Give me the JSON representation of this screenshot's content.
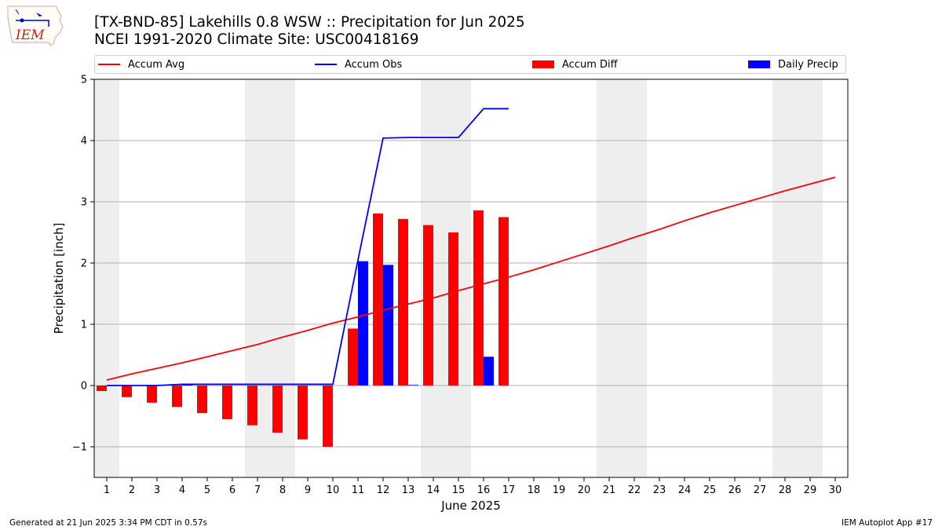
{
  "header": {
    "title": "[TX-BND-85] Lakehills 0.8 WSW :: Precipitation for Jun 2025",
    "subtitle": "NCEI 1991-2020 Climate Site: USC00418169",
    "logo_text": "IEM"
  },
  "legend": {
    "items": [
      {
        "label": "Accum Avg",
        "color": "#ff0000",
        "kind": "line"
      },
      {
        "label": "Accum Obs",
        "color": "#0000ff",
        "kind": "line"
      },
      {
        "label": "Accum Diff",
        "color": "#ff0000",
        "kind": "box"
      },
      {
        "label": "Daily Precip",
        "color": "#0000ff",
        "kind": "box"
      }
    ]
  },
  "footer": {
    "left": "Generated at 21 Jun 2025 3:34 PM CDT in 0.57s",
    "right": "IEM Autoplot App #17"
  },
  "chart_data": {
    "type": "bar",
    "xlabel": "June 2025",
    "ylabel": "Precipitation [inch]",
    "ylim": [
      -1.5,
      5
    ],
    "xlim": [
      0.5,
      30.5
    ],
    "yticks": [
      5,
      4,
      3,
      2,
      1,
      0,
      -1
    ],
    "ytick_labels": [
      "5",
      "4",
      "3",
      "2",
      "1",
      "0",
      "−1"
    ],
    "x": [
      1,
      2,
      3,
      4,
      5,
      6,
      7,
      8,
      9,
      10,
      11,
      12,
      13,
      14,
      15,
      16,
      17,
      18,
      19,
      20,
      21,
      22,
      23,
      24,
      25,
      26,
      27,
      28,
      29,
      30
    ],
    "grid": "horizontal",
    "weekend_shading": [
      [
        1,
        1
      ],
      [
        7,
        8
      ],
      [
        14,
        15
      ],
      [
        21,
        22
      ],
      [
        28,
        29
      ]
    ],
    "weekend_color": "#eeeeee",
    "accum_avg": [
      0.09,
      0.19,
      0.28,
      0.37,
      0.47,
      0.57,
      0.67,
      0.79,
      0.9,
      1.02,
      1.12,
      1.23,
      1.33,
      1.43,
      1.55,
      1.66,
      1.77,
      1.89,
      2.02,
      2.15,
      2.28,
      2.42,
      2.55,
      2.69,
      2.82,
      2.94,
      3.06,
      3.18,
      3.29,
      3.4
    ],
    "accum_obs": [
      0.0,
      0.0,
      0.0,
      0.02,
      0.02,
      0.02,
      0.02,
      0.02,
      0.02,
      0.02,
      2.05,
      4.04,
      4.05,
      4.05,
      4.05,
      4.52,
      4.52
    ],
    "accum_diff": [
      -0.09,
      -0.19,
      -0.28,
      -0.35,
      -0.45,
      -0.55,
      -0.65,
      -0.77,
      -0.88,
      -1.0,
      0.93,
      2.81,
      2.72,
      2.62,
      2.5,
      2.86,
      2.75
    ],
    "daily_precip": [
      0.0,
      0.0,
      0.0,
      0.02,
      0.0,
      0.0,
      0.0,
      0.0,
      0.0,
      0.0,
      2.03,
      1.97,
      0.01,
      0.0,
      0.0,
      0.47,
      0.0
    ]
  }
}
